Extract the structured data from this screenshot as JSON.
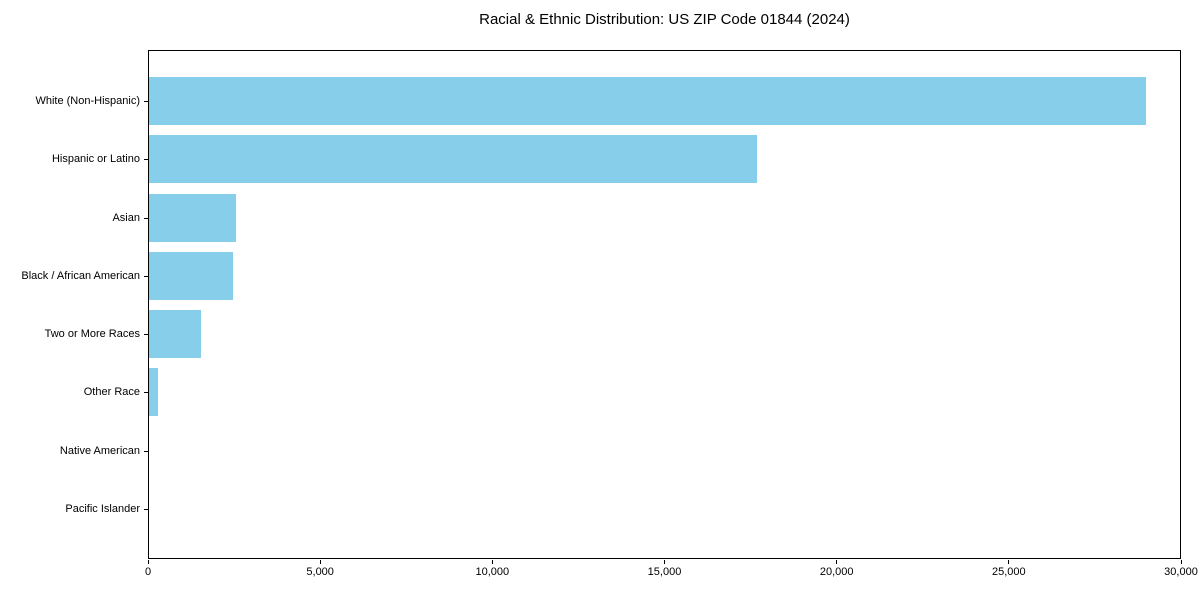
{
  "chart_data": {
    "type": "bar",
    "orientation": "horizontal",
    "title": "Racial & Ethnic Distribution: US ZIP Code 01844 (2024)",
    "categories": [
      "White (Non-Hispanic)",
      "Hispanic or Latino",
      "Asian",
      "Black / African American",
      "Two or More Races",
      "Other Race",
      "Native American",
      "Pacific Islander"
    ],
    "values": [
      29000,
      17700,
      2520,
      2450,
      1500,
      260,
      0,
      0
    ],
    "xlabel": "",
    "ylabel": "",
    "xlim": [
      0,
      30000
    ],
    "x_ticks": [
      0,
      5000,
      10000,
      15000,
      20000,
      25000,
      30000
    ],
    "x_tick_labels": [
      "0",
      "5,000",
      "10,000",
      "15,000",
      "20,000",
      "25,000",
      "30,000"
    ],
    "bar_color": "#87CEEB",
    "axis_color": "#000000",
    "grid": false,
    "legend_position": "none"
  }
}
